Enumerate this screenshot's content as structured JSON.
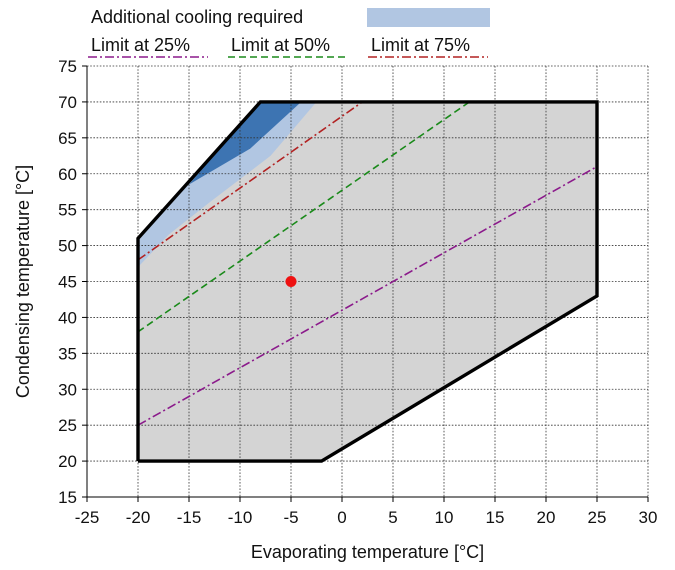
{
  "chart_data": {
    "type": "line",
    "xlabel": "Evaporating temperature [°C]",
    "ylabel": "Condensing temperature [°C]",
    "xlim": [
      -25,
      30
    ],
    "ylim": [
      15,
      75
    ],
    "xticks": [
      -25,
      -20,
      -15,
      -10,
      -5,
      0,
      5,
      10,
      15,
      20,
      25,
      30
    ],
    "yticks": [
      15,
      20,
      25,
      30,
      35,
      40,
      45,
      50,
      55,
      60,
      65,
      70,
      75
    ],
    "grid": true,
    "legend_position": "top",
    "envelope": {
      "color": "#000000",
      "fill": "#d4d4d4",
      "points": [
        [
          -20,
          20
        ],
        [
          -2,
          20
        ],
        [
          25,
          43
        ],
        [
          25,
          70
        ],
        [
          -8,
          70
        ],
        [
          -20,
          51
        ],
        [
          -20,
          20
        ]
      ]
    },
    "cooling_region": {
      "name": "Additional cooling required",
      "color": "#b1c6e2",
      "dark_color": "#3d74b2",
      "light_polygon": [
        [
          -20,
          47
        ],
        [
          -20,
          51
        ],
        [
          -8,
          70
        ],
        [
          -2.5,
          70
        ],
        [
          -7,
          62.5
        ],
        [
          -13,
          56
        ],
        [
          -17,
          51.5
        ]
      ],
      "dark_polygon": [
        [
          -15,
          58.5
        ],
        [
          -8,
          70
        ],
        [
          -4,
          70
        ],
        [
          -9,
          63.5
        ]
      ]
    },
    "series": [
      {
        "name": "Limit at 25%",
        "color": "#8b1a8b",
        "dash": "dashdot",
        "x": [
          -20,
          25
        ],
        "y": [
          25,
          61
        ]
      },
      {
        "name": "Limit at 50%",
        "color": "#1a8a1a",
        "dash": "dash",
        "x": [
          -20,
          12.5
        ],
        "y": [
          38,
          70
        ]
      },
      {
        "name": "Limit at 75%",
        "color": "#b22222",
        "dash": "dashdot",
        "x": [
          -20,
          2
        ],
        "y": [
          48,
          70
        ]
      }
    ],
    "points": [
      {
        "x": -5,
        "y": 45,
        "color": "#ee1111"
      }
    ]
  }
}
